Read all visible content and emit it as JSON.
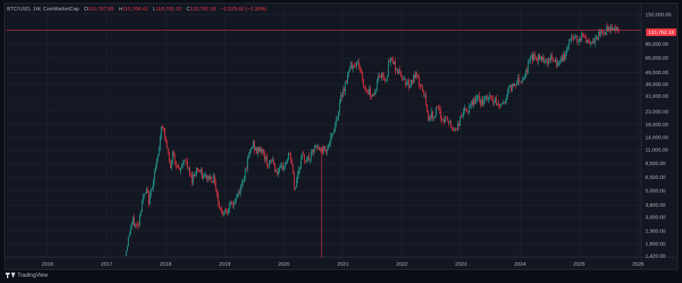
{
  "header": {
    "symbol": "BTC/USD, 1W, CoinMarketCap",
    "o_label": "O",
    "o_value": "110,767.95",
    "h_label": "H",
    "h_value": "110,768.41",
    "l_label": "L",
    "l_value": "110,762.10",
    "c_label": "C",
    "c_value": "110,762.33",
    "change": "−2,525.62 (−2.33%)"
  },
  "price_tag": "110,762.33",
  "footer": {
    "brand": "TradingView"
  },
  "colors": {
    "up": "#26a69a",
    "down": "#f23645",
    "grid": "#1e222d",
    "axis_text": "#b2b5be"
  },
  "chart_data": {
    "type": "candlestick",
    "y_scale": "log",
    "ylim": [
      1420,
      150000
    ],
    "xlim": [
      2015.3,
      2026.05
    ],
    "last_price": 110762.33,
    "y_ticks": [
      {
        "value": 150000,
        "label": "150,000.00"
      },
      {
        "value": 85000,
        "label": "85,000.00"
      },
      {
        "value": 65000,
        "label": "65,000.00"
      },
      {
        "value": 49000,
        "label": "49,000.00"
      },
      {
        "value": 39000,
        "label": "39,000.00"
      },
      {
        "value": 31000,
        "label": "31,000.00"
      },
      {
        "value": 23000,
        "label": "23,000.00"
      },
      {
        "value": 18000,
        "label": "18,000.00"
      },
      {
        "value": 14000,
        "label": "14,000.00"
      },
      {
        "value": 11000,
        "label": "11,000.00"
      },
      {
        "value": 8500,
        "label": "8,500.00"
      },
      {
        "value": 6500,
        "label": "6,500.00"
      },
      {
        "value": 5000,
        "label": "5,000.00"
      },
      {
        "value": 3800,
        "label": "3,800.00"
      },
      {
        "value": 3000,
        "label": "3,000.00"
      },
      {
        "value": 2300,
        "label": "2,300.00"
      },
      {
        "value": 1800,
        "label": "1,800.00"
      },
      {
        "value": 1420,
        "label": "1,420.00"
      }
    ],
    "x_ticks": [
      {
        "value": 2016,
        "label": "2016"
      },
      {
        "value": 2017,
        "label": "2017"
      },
      {
        "value": 2018,
        "label": "2018"
      },
      {
        "value": 2019,
        "label": "2019"
      },
      {
        "value": 2020,
        "label": "2020"
      },
      {
        "value": 2021,
        "label": "2021"
      },
      {
        "value": 2022,
        "label": "2022"
      },
      {
        "value": 2023,
        "label": "2023"
      },
      {
        "value": 2024,
        "label": "2024"
      },
      {
        "value": 2025,
        "label": "2025"
      },
      {
        "value": 2026,
        "label": "2026"
      }
    ],
    "anchors": [
      [
        2017.33,
        1420
      ],
      [
        2017.42,
        2400
      ],
      [
        2017.46,
        2800
      ],
      [
        2017.5,
        2600
      ],
      [
        2017.55,
        2500
      ],
      [
        2017.62,
        4200
      ],
      [
        2017.7,
        4900
      ],
      [
        2017.74,
        4000
      ],
      [
        2017.8,
        6000
      ],
      [
        2017.85,
        7800
      ],
      [
        2017.9,
        10500
      ],
      [
        2017.95,
        19000
      ],
      [
        2018.0,
        14500
      ],
      [
        2018.04,
        11500
      ],
      [
        2018.1,
        7500
      ],
      [
        2018.14,
        10500
      ],
      [
        2018.2,
        8500
      ],
      [
        2018.25,
        7000
      ],
      [
        2018.33,
        9400
      ],
      [
        2018.4,
        7500
      ],
      [
        2018.46,
        6200
      ],
      [
        2018.55,
        7800
      ],
      [
        2018.65,
        6500
      ],
      [
        2018.75,
        6500
      ],
      [
        2018.85,
        6200
      ],
      [
        2018.9,
        4200
      ],
      [
        2018.96,
        3300
      ],
      [
        2019.05,
        3500
      ],
      [
        2019.12,
        3700
      ],
      [
        2019.2,
        4100
      ],
      [
        2019.3,
        5500
      ],
      [
        2019.38,
        8000
      ],
      [
        2019.46,
        11000
      ],
      [
        2019.5,
        12500
      ],
      [
        2019.55,
        10500
      ],
      [
        2019.62,
        11500
      ],
      [
        2019.7,
        9500
      ],
      [
        2019.78,
        8000
      ],
      [
        2019.82,
        9500
      ],
      [
        2019.88,
        7300
      ],
      [
        2019.95,
        7200
      ],
      [
        2020.05,
        8500
      ],
      [
        2020.1,
        10000
      ],
      [
        2020.15,
        9000
      ],
      [
        2020.2,
        5000
      ],
      [
        2020.25,
        7000
      ],
      [
        2020.33,
        9500
      ],
      [
        2020.45,
        9200
      ],
      [
        2020.55,
        11500
      ],
      [
        2020.65,
        11000
      ],
      [
        2020.75,
        11500
      ],
      [
        2020.82,
        13500
      ],
      [
        2020.88,
        17500
      ],
      [
        2020.95,
        24000
      ],
      [
        2021.0,
        33000
      ],
      [
        2021.05,
        38000
      ],
      [
        2021.1,
        46000
      ],
      [
        2021.16,
        57000
      ],
      [
        2021.25,
        59000
      ],
      [
        2021.3,
        56000
      ],
      [
        2021.37,
        38000
      ],
      [
        2021.45,
        34000
      ],
      [
        2021.55,
        32000
      ],
      [
        2021.62,
        45000
      ],
      [
        2021.7,
        47000
      ],
      [
        2021.75,
        43000
      ],
      [
        2021.8,
        60000
      ],
      [
        2021.86,
        64000
      ],
      [
        2021.92,
        52000
      ],
      [
        2022.0,
        47000
      ],
      [
        2022.08,
        42000
      ],
      [
        2022.15,
        39000
      ],
      [
        2022.25,
        46000
      ],
      [
        2022.33,
        38000
      ],
      [
        2022.42,
        29000
      ],
      [
        2022.45,
        21000
      ],
      [
        2022.55,
        21500
      ],
      [
        2022.62,
        24000
      ],
      [
        2022.7,
        20000
      ],
      [
        2022.8,
        19500
      ],
      [
        2022.86,
        16500
      ],
      [
        2022.95,
        16800
      ],
      [
        2023.05,
        23000
      ],
      [
        2023.15,
        23500
      ],
      [
        2023.22,
        28000
      ],
      [
        2023.3,
        29500
      ],
      [
        2023.38,
        27000
      ],
      [
        2023.48,
        30500
      ],
      [
        2023.55,
        29500
      ],
      [
        2023.65,
        26000
      ],
      [
        2023.75,
        27500
      ],
      [
        2023.82,
        35000
      ],
      [
        2023.9,
        38000
      ],
      [
        2023.98,
        43000
      ],
      [
        2024.05,
        42500
      ],
      [
        2024.13,
        51000
      ],
      [
        2024.2,
        68000
      ],
      [
        2024.3,
        64000
      ],
      [
        2024.38,
        67000
      ],
      [
        2024.48,
        62000
      ],
      [
        2024.55,
        65000
      ],
      [
        2024.62,
        58000
      ],
      [
        2024.7,
        60000
      ],
      [
        2024.78,
        68000
      ],
      [
        2024.85,
        90000
      ],
      [
        2024.92,
        98000
      ],
      [
        2025.0,
        94000
      ],
      [
        2025.06,
        100000
      ],
      [
        2025.13,
        96000
      ],
      [
        2025.17,
        84000
      ],
      [
        2025.23,
        82000
      ],
      [
        2025.3,
        94000
      ],
      [
        2025.38,
        104000
      ],
      [
        2025.45,
        107000
      ],
      [
        2025.53,
        118000
      ],
      [
        2025.6,
        117000
      ],
      [
        2025.65,
        113000
      ],
      [
        2025.68,
        110762
      ]
    ]
  }
}
